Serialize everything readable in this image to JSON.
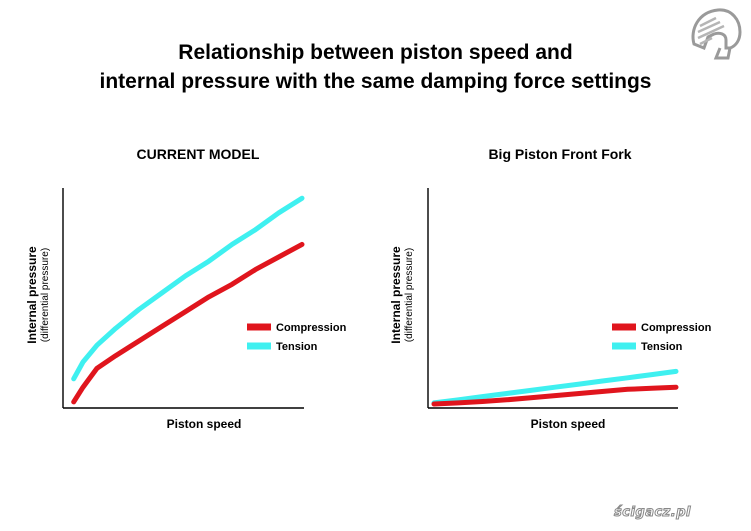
{
  "title_lines": [
    "Relationship between piston speed and",
    "internal pressure with the same damping force settings"
  ],
  "watermark": "ścigacz.pl",
  "colors": {
    "compression": "#e0151d",
    "tension": "#3ff0f0",
    "axis": "#000000"
  },
  "chart_data": [
    {
      "type": "line",
      "title": "CURRENT MODEL",
      "xlabel": "Piston speed",
      "ylabel": "Internal pressure",
      "ylabel_sub": "(differential pressure)",
      "xlim": [
        0,
        1
      ],
      "ylim": [
        0,
        1
      ],
      "grid": false,
      "legend": "right",
      "series": [
        {
          "name": "Compression",
          "color": "#e0151d",
          "x": [
            0.02,
            0.06,
            0.12,
            0.2,
            0.3,
            0.4,
            0.5,
            0.6,
            0.7,
            0.8,
            0.9,
            1.0
          ],
          "y": [
            0.01,
            0.08,
            0.17,
            0.23,
            0.3,
            0.37,
            0.44,
            0.51,
            0.57,
            0.64,
            0.7,
            0.76
          ]
        },
        {
          "name": "Tension",
          "color": "#3ff0f0",
          "x": [
            0.02,
            0.06,
            0.12,
            0.2,
            0.3,
            0.4,
            0.5,
            0.6,
            0.7,
            0.8,
            0.9,
            1.0
          ],
          "y": [
            0.12,
            0.2,
            0.28,
            0.36,
            0.45,
            0.53,
            0.61,
            0.68,
            0.76,
            0.83,
            0.91,
            0.98
          ]
        }
      ]
    },
    {
      "type": "line",
      "title": "Big Piston Front Fork",
      "xlabel": "Piston speed",
      "ylabel": "Internal pressure",
      "ylabel_sub": "(differential pressure)",
      "xlim": [
        0,
        1
      ],
      "ylim": [
        0,
        1
      ],
      "grid": false,
      "legend": "right",
      "series": [
        {
          "name": "Compression",
          "color": "#e0151d",
          "x": [
            0.0,
            0.1,
            0.2,
            0.3,
            0.4,
            0.5,
            0.6,
            0.7,
            0.8,
            0.9,
            1.0
          ],
          "y": [
            0.0,
            0.005,
            0.012,
            0.02,
            0.03,
            0.04,
            0.05,
            0.06,
            0.07,
            0.075,
            0.08
          ]
        },
        {
          "name": "Tension",
          "color": "#3ff0f0",
          "x": [
            0.0,
            0.1,
            0.2,
            0.3,
            0.4,
            0.5,
            0.6,
            0.7,
            0.8,
            0.9,
            1.0
          ],
          "y": [
            0.005,
            0.02,
            0.035,
            0.05,
            0.065,
            0.08,
            0.095,
            0.11,
            0.125,
            0.14,
            0.155
          ]
        }
      ]
    }
  ]
}
